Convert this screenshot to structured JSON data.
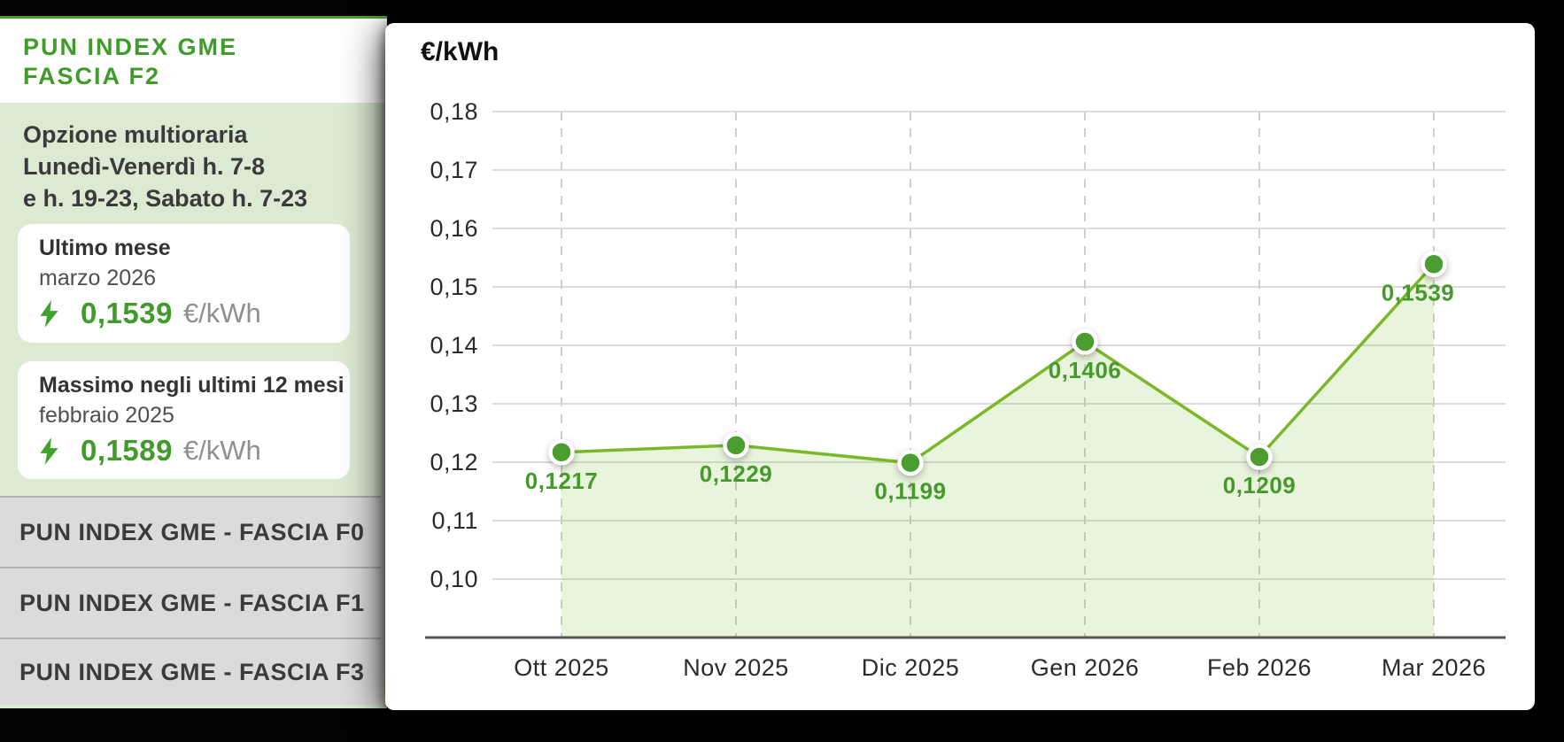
{
  "sidebar": {
    "title_line1": "PUN INDEX GME",
    "title_line2": "FASCIA F2",
    "description_lines": [
      "Opzione multioraria",
      "Lunedì-Venerdì h. 7-8",
      "e h. 19-23, Sabato h. 7-23"
    ],
    "cards": [
      {
        "heading": "Ultimo mese",
        "period": "marzo 2026",
        "value": "0,1539",
        "unit": "€/kWh"
      },
      {
        "heading": "Massimo negli ultimi 12 mesi",
        "period": "febbraio 2025",
        "value": "0,1589",
        "unit": "€/kWh"
      }
    ],
    "links": [
      "PUN INDEX GME - FASCIA F0",
      "PUN INDEX GME - FASCIA F1",
      "PUN INDEX GME - FASCIA F3"
    ],
    "icons": [
      "lightning-icon",
      "lightning-icon"
    ]
  },
  "chart": {
    "unit_label": "€/kWh"
  },
  "chart_data": {
    "type": "area",
    "title": "",
    "xlabel": "",
    "ylabel": "€/kWh",
    "categories": [
      "Ott 2025",
      "Nov 2025",
      "Dic 2025",
      "Gen 2026",
      "Feb 2026",
      "Mar 2026"
    ],
    "values": [
      0.1217,
      0.1229,
      0.1199,
      0.1406,
      0.1209,
      0.1539
    ],
    "point_labels": [
      "0,1217",
      "0,1229",
      "0,1199",
      "0,1406",
      "0,1209",
      "0,1539"
    ],
    "y_ticks": [
      {
        "label": "0,18",
        "value": 0.18
      },
      {
        "label": "0,17",
        "value": 0.17
      },
      {
        "label": "0,16",
        "value": 0.16
      },
      {
        "label": "0,15",
        "value": 0.15
      },
      {
        "label": "0,14",
        "value": 0.14
      },
      {
        "label": "0,13",
        "value": 0.13
      },
      {
        "label": "0,12",
        "value": 0.12
      },
      {
        "label": "0,11",
        "value": 0.11
      },
      {
        "label": "0,10",
        "value": 0.1
      }
    ],
    "ylim": [
      0.091,
      0.184
    ],
    "grid": true,
    "legend": false
  },
  "colors": {
    "brand_green": "#3f9b2a",
    "line_green": "#79b829",
    "dot_green": "#4a9d2e",
    "area_green": "rgba(121,184,41,0.16)",
    "panel_green": "#dcead3",
    "accent_border_green": "#4f9d31",
    "grid_gray": "#dcdcdc",
    "dash_gray": "#cfcfcf",
    "axis_gray": "#57575a",
    "row_bg": "#dbdbdb",
    "value_unit_gray": "#8f8f8f",
    "text_dark": "#3a3a3a"
  }
}
